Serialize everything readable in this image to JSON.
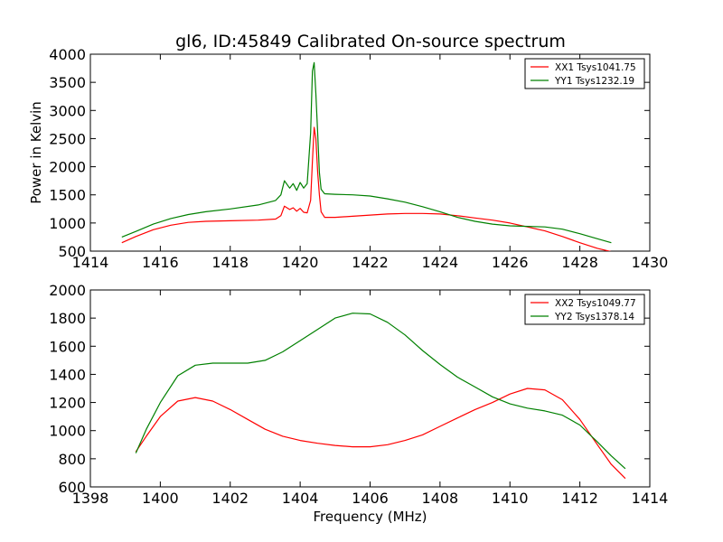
{
  "figure": {
    "title": "gl6, ID:45849 Calibrated On-source spectrum",
    "background": "#ffffff"
  },
  "chart_data": [
    {
      "type": "line",
      "title": "gl6, ID:45849 Calibrated On-source spectrum",
      "xlabel": "",
      "ylabel": "Power in Kelvin",
      "xlim": [
        1414,
        1430
      ],
      "ylim": [
        500,
        4000
      ],
      "xticks": [
        1414,
        1416,
        1418,
        1420,
        1422,
        1424,
        1426,
        1428,
        1430
      ],
      "yticks": [
        500,
        1000,
        1500,
        2000,
        2500,
        3000,
        3500,
        4000
      ],
      "legend_position": "upper right",
      "grid": false,
      "series": [
        {
          "name": "XX1 Tsys1041.75",
          "color": "#ff0000",
          "x": [
            1414.9,
            1415.3,
            1415.8,
            1416.3,
            1416.8,
            1417.3,
            1418.0,
            1418.8,
            1419.3,
            1419.45,
            1419.55,
            1419.7,
            1419.8,
            1419.9,
            1420.0,
            1420.1,
            1420.2,
            1420.3,
            1420.35,
            1420.4,
            1420.45,
            1420.5,
            1420.55,
            1420.6,
            1420.7,
            1421.0,
            1421.5,
            1422.0,
            1422.5,
            1423.0,
            1423.5,
            1424.0,
            1424.5,
            1425.0,
            1425.5,
            1426.0,
            1426.5,
            1427.0,
            1427.5,
            1428.0,
            1428.5,
            1428.9
          ],
          "y": [
            650,
            760,
            880,
            960,
            1010,
            1030,
            1040,
            1050,
            1070,
            1130,
            1300,
            1240,
            1270,
            1210,
            1260,
            1190,
            1180,
            1400,
            2100,
            2700,
            2500,
            1900,
            1500,
            1200,
            1100,
            1100,
            1120,
            1140,
            1160,
            1170,
            1170,
            1160,
            1130,
            1090,
            1050,
            1000,
            930,
            860,
            760,
            650,
            550,
            490
          ]
        },
        {
          "name": "YY1 Tsys1232.19",
          "color": "#008000",
          "x": [
            1414.9,
            1415.3,
            1415.8,
            1416.3,
            1416.8,
            1417.3,
            1418.0,
            1418.8,
            1419.3,
            1419.45,
            1419.55,
            1419.7,
            1419.8,
            1419.9,
            1420.0,
            1420.1,
            1420.2,
            1420.3,
            1420.35,
            1420.4,
            1420.45,
            1420.5,
            1420.55,
            1420.6,
            1420.7,
            1421.0,
            1421.5,
            1422.0,
            1422.5,
            1423.0,
            1423.5,
            1424.0,
            1424.5,
            1425.0,
            1425.5,
            1426.0,
            1426.5,
            1427.0,
            1427.5,
            1428.0,
            1428.5,
            1428.9
          ],
          "y": [
            750,
            850,
            980,
            1080,
            1150,
            1200,
            1250,
            1320,
            1400,
            1500,
            1750,
            1620,
            1700,
            1580,
            1720,
            1620,
            1700,
            2600,
            3700,
            3850,
            3300,
            2600,
            1900,
            1600,
            1520,
            1510,
            1500,
            1480,
            1430,
            1370,
            1290,
            1200,
            1100,
            1030,
            980,
            950,
            940,
            930,
            890,
            810,
            720,
            650
          ]
        }
      ]
    },
    {
      "type": "line",
      "title": "",
      "xlabel": "Frequency (MHz)",
      "ylabel": "",
      "xlim": [
        1398,
        1414
      ],
      "ylim": [
        600,
        2000
      ],
      "xticks": [
        1398,
        1400,
        1402,
        1404,
        1406,
        1408,
        1410,
        1412,
        1414
      ],
      "yticks": [
        600,
        800,
        1000,
        1200,
        1400,
        1600,
        1800,
        2000
      ],
      "legend_position": "upper right",
      "grid": false,
      "series": [
        {
          "name": "XX2 Tsys1049.77",
          "color": "#ff0000",
          "x": [
            1399.3,
            1399.6,
            1400.0,
            1400.5,
            1401.0,
            1401.5,
            1402.0,
            1402.5,
            1403.0,
            1403.5,
            1404.0,
            1404.5,
            1405.0,
            1405.5,
            1406.0,
            1406.5,
            1407.0,
            1407.5,
            1408.0,
            1408.5,
            1409.0,
            1409.5,
            1410.0,
            1410.5,
            1411.0,
            1411.5,
            1412.0,
            1412.5,
            1412.9,
            1413.3
          ],
          "y": [
            850,
            960,
            1100,
            1210,
            1235,
            1210,
            1150,
            1080,
            1010,
            960,
            930,
            910,
            895,
            885,
            885,
            900,
            930,
            970,
            1030,
            1090,
            1150,
            1200,
            1260,
            1300,
            1290,
            1220,
            1080,
            900,
            760,
            660
          ]
        },
        {
          "name": "YY2 Tsys1378.14",
          "color": "#008000",
          "x": [
            1399.3,
            1399.6,
            1400.0,
            1400.5,
            1401.0,
            1401.5,
            1402.0,
            1402.5,
            1403.0,
            1403.5,
            1404.0,
            1404.5,
            1405.0,
            1405.5,
            1406.0,
            1406.5,
            1407.0,
            1407.5,
            1408.0,
            1408.5,
            1409.0,
            1409.5,
            1410.0,
            1410.5,
            1411.0,
            1411.5,
            1412.0,
            1412.5,
            1412.9,
            1413.3
          ],
          "y": [
            840,
            1010,
            1200,
            1390,
            1465,
            1480,
            1480,
            1480,
            1500,
            1560,
            1640,
            1720,
            1800,
            1835,
            1830,
            1770,
            1680,
            1570,
            1470,
            1380,
            1310,
            1240,
            1190,
            1160,
            1140,
            1110,
            1040,
            920,
            820,
            730
          ]
        }
      ]
    }
  ]
}
